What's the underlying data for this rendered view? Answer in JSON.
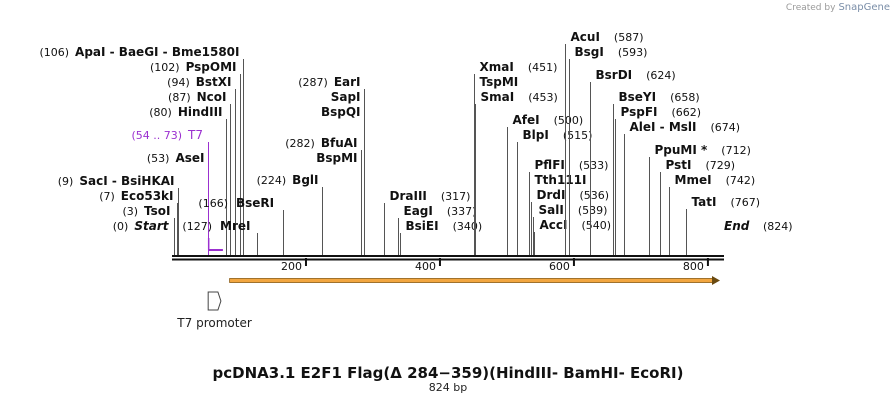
{
  "credit": {
    "prefix": "Created by",
    "brand": "SnapGene"
  },
  "map": {
    "title": "pcDNA3.1 E2F1 Flag(Δ 284−359)(HindIII- BamHI- EcoRI)",
    "length_label": "824 bp",
    "length_bp": 824,
    "ticks": [
      200,
      400,
      600,
      800
    ],
    "features": [
      {
        "name": "T7 promoter",
        "type": "promoter",
        "start": 54,
        "end": 73,
        "color": "#ffffff"
      },
      {
        "name": "",
        "type": "orf",
        "start": 86,
        "end": 824,
        "color": "#f2a640"
      }
    ],
    "sites": [
      {
        "pos": 0,
        "label": "Start",
        "display": "(0)",
        "style": "italic"
      },
      {
        "pos": 3,
        "label": "TsoI",
        "display": "(3)"
      },
      {
        "pos": 7,
        "label": "Eco53kI",
        "display": "(7)"
      },
      {
        "pos": 9,
        "label": "SacI  - BsiHKAI",
        "display": "(9)"
      },
      {
        "pos": 53,
        "label": "AseI",
        "display": "(53)"
      },
      {
        "pos": 54,
        "label": "T7",
        "display": "(54 .. 73)",
        "color": "#9b30d0",
        "normal": true
      },
      {
        "pos": 80,
        "label": "HindIII",
        "display": "(80)"
      },
      {
        "pos": 87,
        "label": "NcoI",
        "display": "(87)"
      },
      {
        "pos": 94,
        "label": "BstXI",
        "display": "(94)"
      },
      {
        "pos": 102,
        "label": "PspOMI",
        "display": "(102)"
      },
      {
        "pos": 106,
        "label": "ApaI  - BaeGI  - Bme1580I",
        "display": "(106)"
      },
      {
        "pos": 127,
        "label": "MreI",
        "display": "(127)"
      },
      {
        "pos": 166,
        "label": "BseRI",
        "display": "(166)"
      },
      {
        "pos": 224,
        "label": "BglI",
        "display": "(224)"
      },
      {
        "pos": 282,
        "label": "BfuAI",
        "display": "(282)"
      },
      {
        "pos": 282,
        "label": "BspMI",
        "display": ""
      },
      {
        "pos": 287,
        "label": "EarI",
        "display": "(287)"
      },
      {
        "pos": 287,
        "label": "SapI",
        "display": ""
      },
      {
        "pos": 287,
        "label": "BspQI",
        "display": ""
      },
      {
        "pos": 317,
        "label": "DraIII",
        "display": "(317)"
      },
      {
        "pos": 337,
        "label": "EagI",
        "display": "(337)"
      },
      {
        "pos": 340,
        "label": "BsiEI",
        "display": "(340)"
      },
      {
        "pos": 451,
        "label": "XmaI",
        "display": "(451)"
      },
      {
        "pos": 451,
        "label": "TspMI",
        "display": ""
      },
      {
        "pos": 453,
        "label": "SmaI",
        "display": "(453)"
      },
      {
        "pos": 500,
        "label": "AfeI",
        "display": "(500)"
      },
      {
        "pos": 515,
        "label": "BlpI",
        "display": "(515)"
      },
      {
        "pos": 533,
        "label": "PflFI",
        "display": "(533)"
      },
      {
        "pos": 533,
        "label": "Tth111I",
        "display": ""
      },
      {
        "pos": 536,
        "label": "DrdI",
        "display": "(536)"
      },
      {
        "pos": 539,
        "label": "SalI",
        "display": "(539)"
      },
      {
        "pos": 540,
        "label": "AccI",
        "display": "(540)"
      },
      {
        "pos": 587,
        "label": "AcuI",
        "display": "(587)"
      },
      {
        "pos": 593,
        "label": "BsgI",
        "display": "(593)"
      },
      {
        "pos": 624,
        "label": "BsrDI",
        "display": "(624)"
      },
      {
        "pos": 658,
        "label": "BseYI",
        "display": "(658)"
      },
      {
        "pos": 662,
        "label": "PspFI",
        "display": "(662)"
      },
      {
        "pos": 674,
        "label": "AleI  - MslI",
        "display": "(674)"
      },
      {
        "pos": 712,
        "label": "PpuMI *",
        "display": "(712)"
      },
      {
        "pos": 729,
        "label": "PstI",
        "display": "(729)"
      },
      {
        "pos": 742,
        "label": "MmeI",
        "display": "(742)"
      },
      {
        "pos": 767,
        "label": "TatI",
        "display": "(767)"
      },
      {
        "pos": 824,
        "label": "End",
        "display": "(824)",
        "style": "italic"
      }
    ]
  }
}
